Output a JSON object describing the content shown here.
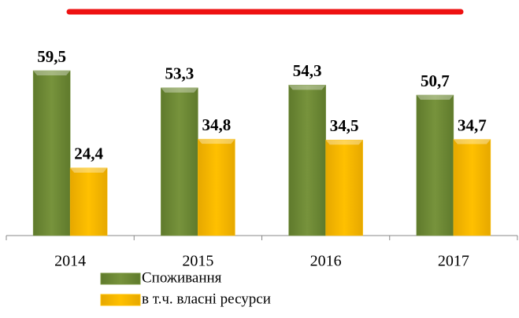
{
  "chart_data": {
    "type": "bar",
    "categories": [
      "2014",
      "2015",
      "2016",
      "2017"
    ],
    "series": [
      {
        "name": "Споживання",
        "color": "#77933c",
        "values": [
          59.5,
          53.3,
          54.3,
          50.7
        ],
        "value_labels": [
          "59,5",
          "53,3",
          "54,3",
          "50,7"
        ]
      },
      {
        "name": "в т.ч. власні ресурси",
        "color": "#ffc000",
        "values": [
          24.4,
          34.8,
          34.5,
          34.7
        ],
        "value_labels": [
          "24,4",
          "34,8",
          "34,5",
          "34,7"
        ]
      }
    ],
    "ylim": [
      0,
      85
    ]
  }
}
